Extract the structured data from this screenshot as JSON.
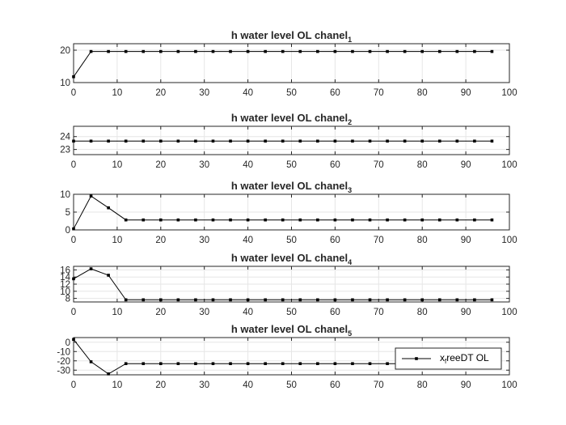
{
  "colors": {
    "background": "#ffffff",
    "axes_frame": "#262626",
    "grid": "#e6e6e6",
    "series": "#000000",
    "text": "#262626"
  },
  "chart_data": [
    {
      "type": "line",
      "title": "h water level OL chanel",
      "title_subscript": "1",
      "xlim": [
        0,
        100
      ],
      "ylim": [
        10,
        22
      ],
      "xticks": [
        "0",
        "10",
        "20",
        "30",
        "40",
        "50",
        "60",
        "70",
        "80",
        "90",
        "100"
      ],
      "yticks": [
        {
          "value": 10,
          "label": "10"
        },
        {
          "value": 20,
          "label": "20"
        }
      ],
      "grid": true,
      "x": [
        0,
        4,
        8,
        12,
        16,
        20,
        24,
        28,
        32,
        36,
        40,
        44,
        48,
        52,
        56,
        60,
        64,
        68,
        72,
        76,
        80,
        84,
        88,
        92,
        96
      ],
      "values": [
        11.8,
        19.6,
        19.6,
        19.6,
        19.6,
        19.6,
        19.6,
        19.6,
        19.6,
        19.6,
        19.6,
        19.6,
        19.6,
        19.6,
        19.6,
        19.6,
        19.6,
        19.6,
        19.6,
        19.6,
        19.6,
        19.6,
        19.6,
        19.6,
        19.6
      ]
    },
    {
      "type": "line",
      "title": "h water level OL chanel",
      "title_subscript": "2",
      "xlim": [
        0,
        100
      ],
      "ylim": [
        22.6,
        24.8
      ],
      "xticks": [
        "0",
        "10",
        "20",
        "30",
        "40",
        "50",
        "60",
        "70",
        "80",
        "90",
        "100"
      ],
      "yticks": [
        {
          "value": 23,
          "label": "23"
        },
        {
          "value": 24,
          "label": "24"
        }
      ],
      "grid": true,
      "x": [
        0,
        4,
        8,
        12,
        16,
        20,
        24,
        28,
        32,
        36,
        40,
        44,
        48,
        52,
        56,
        60,
        64,
        68,
        72,
        76,
        80,
        84,
        88,
        92,
        96
      ],
      "values": [
        23.65,
        23.65,
        23.65,
        23.65,
        23.65,
        23.65,
        23.65,
        23.65,
        23.65,
        23.65,
        23.65,
        23.65,
        23.65,
        23.65,
        23.65,
        23.65,
        23.65,
        23.65,
        23.65,
        23.65,
        23.65,
        23.65,
        23.65,
        23.65,
        23.65
      ]
    },
    {
      "type": "line",
      "title": "h water level OL chanel",
      "title_subscript": "3",
      "xlim": [
        0,
        100
      ],
      "ylim": [
        0,
        10
      ],
      "xticks": [
        "0",
        "10",
        "20",
        "30",
        "40",
        "50",
        "60",
        "70",
        "80",
        "90",
        "100"
      ],
      "yticks": [
        {
          "value": 0,
          "label": "0"
        },
        {
          "value": 5,
          "label": "5"
        },
        {
          "value": 10,
          "label": "10"
        }
      ],
      "grid": true,
      "x": [
        0,
        4,
        8,
        12,
        16,
        20,
        24,
        28,
        32,
        36,
        40,
        44,
        48,
        52,
        56,
        60,
        64,
        68,
        72,
        76,
        80,
        84,
        88,
        92,
        96
      ],
      "values": [
        0.3,
        9.5,
        6.2,
        2.8,
        2.8,
        2.8,
        2.8,
        2.8,
        2.8,
        2.8,
        2.8,
        2.8,
        2.8,
        2.8,
        2.8,
        2.8,
        2.8,
        2.8,
        2.8,
        2.8,
        2.8,
        2.8,
        2.8,
        2.8,
        2.8
      ]
    },
    {
      "type": "line",
      "title": "h water level OL chanel",
      "title_subscript": "4",
      "xlim": [
        0,
        100
      ],
      "ylim": [
        7,
        17
      ],
      "xticks": [
        "0",
        "10",
        "20",
        "30",
        "40",
        "50",
        "60",
        "70",
        "80",
        "90",
        "100"
      ],
      "yticks": [
        {
          "value": 8,
          "label": "8"
        },
        {
          "value": 10,
          "label": "10"
        },
        {
          "value": 12,
          "label": "12"
        },
        {
          "value": 14,
          "label": "14"
        },
        {
          "value": 16,
          "label": "16"
        }
      ],
      "grid": true,
      "x": [
        0,
        4,
        8,
        12,
        16,
        20,
        24,
        28,
        32,
        36,
        40,
        44,
        48,
        52,
        56,
        60,
        64,
        68,
        72,
        76,
        80,
        84,
        88,
        92,
        96
      ],
      "values": [
        13.5,
        16.3,
        14.5,
        7.6,
        7.6,
        7.6,
        7.6,
        7.6,
        7.6,
        7.6,
        7.6,
        7.6,
        7.6,
        7.6,
        7.6,
        7.6,
        7.6,
        7.6,
        7.6,
        7.6,
        7.6,
        7.6,
        7.6,
        7.6,
        7.6
      ]
    },
    {
      "type": "line",
      "title": "h water level OL chanel",
      "title_subscript": "5",
      "xlim": [
        0,
        100
      ],
      "ylim": [
        -35,
        5
      ],
      "xticks": [
        "0",
        "10",
        "20",
        "30",
        "40",
        "50",
        "60",
        "70",
        "80",
        "90",
        "100"
      ],
      "yticks": [
        {
          "value": -30,
          "label": "-30"
        },
        {
          "value": -20,
          "label": "-20"
        },
        {
          "value": -10,
          "label": "-10"
        },
        {
          "value": 0,
          "label": "0"
        }
      ],
      "grid": true,
      "x": [
        0,
        4,
        8,
        12,
        16,
        20,
        24,
        28,
        32,
        36,
        40,
        44,
        48,
        52,
        56,
        60,
        64,
        68,
        72,
        76,
        80,
        84,
        88,
        92,
        96
      ],
      "values": [
        3,
        -21,
        -34,
        -23,
        -23,
        -23,
        -23,
        -23,
        -23,
        -23,
        -23,
        -23,
        -23,
        -23,
        -23,
        -23,
        -23,
        -23,
        -23,
        -23,
        -23,
        -23,
        -23,
        -23,
        -23
      ],
      "legend": {
        "label_prefix": "x",
        "label_subscript": "f",
        "label_suffix": "reeDT OL",
        "location": "right"
      }
    }
  ]
}
